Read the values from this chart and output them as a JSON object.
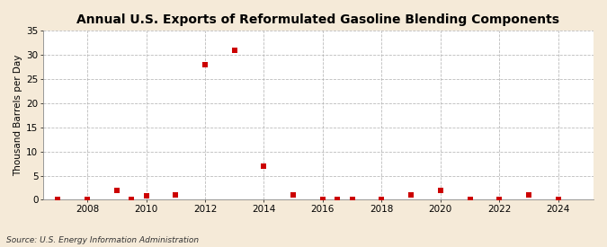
{
  "title": "Annual U.S. Exports of Reformulated Gasoline Blending Components",
  "ylabel": "Thousand Barrels per Day",
  "source": "Source: U.S. Energy Information Administration",
  "years": [
    2007,
    2008,
    2009,
    2009.5,
    2010,
    2011,
    2012,
    2013,
    2014,
    2015,
    2016,
    2016.5,
    2017,
    2018,
    2019,
    2020,
    2021,
    2022,
    2023,
    2024
  ],
  "values": [
    0.05,
    0.05,
    2.0,
    0.05,
    0.9,
    1.0,
    28.0,
    31.0,
    7.0,
    1.0,
    0.1,
    0.05,
    0.05,
    0.1,
    1.0,
    2.0,
    0.1,
    0.1,
    1.0,
    0.1
  ],
  "marker_color": "#cc0000",
  "marker_size": 4,
  "fig_bg_color": "#f5ead8",
  "plot_bg_color": "#ffffff",
  "grid_color": "#aaaaaa",
  "xlim": [
    2006.5,
    2025.2
  ],
  "ylim": [
    0,
    35
  ],
  "yticks": [
    0,
    5,
    10,
    15,
    20,
    25,
    30,
    35
  ],
  "xticks": [
    2008,
    2010,
    2012,
    2014,
    2016,
    2018,
    2020,
    2022,
    2024
  ],
  "title_fontsize": 10,
  "label_fontsize": 7.5,
  "tick_fontsize": 7.5,
  "source_fontsize": 6.5
}
